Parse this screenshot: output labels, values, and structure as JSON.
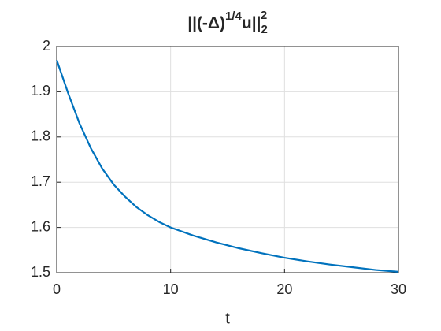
{
  "chart_data": {
    "type": "line",
    "title": {
      "base": "||(-Δ)",
      "sup": "1/4",
      "mid": "u||",
      "sub": "2",
      "sup2": "2"
    },
    "xlabel": "t",
    "x": [
      0,
      1,
      2,
      3,
      4,
      5,
      6,
      7,
      8,
      9,
      10,
      12,
      14,
      16,
      18,
      20,
      22,
      24,
      26,
      28,
      30
    ],
    "series": [
      {
        "color": "#0072bd",
        "values": [
          1.97,
          1.897,
          1.83,
          1.775,
          1.73,
          1.695,
          1.668,
          1.645,
          1.627,
          1.612,
          1.6,
          1.582,
          1.567,
          1.554,
          1.543,
          1.533,
          1.525,
          1.518,
          1.512,
          1.506,
          1.502
        ]
      }
    ],
    "xlim": [
      0,
      30
    ],
    "xticks": [
      0,
      10,
      20,
      30
    ],
    "ylim": [
      1.5,
      2
    ],
    "yticks": [
      1.5,
      1.6,
      1.7,
      1.8,
      1.9,
      2
    ],
    "grid": true
  }
}
